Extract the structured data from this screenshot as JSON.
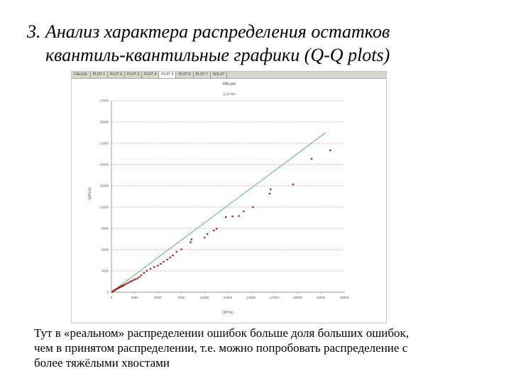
{
  "slide": {
    "title_line1": "3. Анализ характера распределения остатков",
    "title_line2": "квантиль-квантильные графики (Q-Q plots)",
    "body_line1": "Тут в «реальном» распределении ошибок больше доля больших ошибок,",
    "body_line2": "чем в принятом распределении, т.е. можно попробовать распределение с",
    "body_line3": "более тяжёлыми хвостами"
  },
  "screenshot": {
    "tabs": [
      "CALCUL",
      "PLOT 1",
      "PLOT 2",
      "PLOT 3",
      "PLOT 4",
      "PLOT 5",
      "PLOT 6",
      "PLOT 7",
      "SOLUT"
    ],
    "active_tab_index": 5,
    "colors": {
      "points": "#9b1c1c",
      "reference_line": "#3aa655",
      "gridlines": "#d84a4a",
      "tab_bar": "#d9d6cc"
    }
  },
  "chart_data": {
    "type": "scatter",
    "title": "RBI plot",
    "subtitle": "Q Q Plot",
    "xlabel": "Q(Pos)",
    "ylabel": "Q(Real)",
    "xlim": [
      0,
      25000
    ],
    "ylim": [
      0,
      27000
    ],
    "x_ticks": [
      "0",
      "2500",
      "5000",
      "7500",
      "10000",
      "12500",
      "15000",
      "17500",
      "20000",
      "22500",
      "25000"
    ],
    "y_ticks": [
      "0",
      "3000",
      "6000",
      "9000",
      "12000",
      "15000",
      "18000",
      "21000",
      "24000",
      "27000"
    ],
    "grid": "horizontal dashed",
    "reference_line": {
      "from": [
        0,
        0
      ],
      "to": [
        23000,
        22500
      ]
    },
    "series": [
      {
        "points": [
          [
            100,
            60
          ],
          [
            200,
            150
          ],
          [
            300,
            250
          ],
          [
            400,
            330
          ],
          [
            500,
            420
          ],
          [
            600,
            500
          ],
          [
            700,
            560
          ],
          [
            800,
            620
          ],
          [
            900,
            700
          ],
          [
            1000,
            770
          ],
          [
            1100,
            830
          ],
          [
            1200,
            900
          ],
          [
            1300,
            950
          ],
          [
            1400,
            1050
          ],
          [
            1600,
            1180
          ],
          [
            1800,
            1320
          ],
          [
            2000,
            1480
          ],
          [
            2200,
            1580
          ],
          [
            2400,
            1730
          ],
          [
            2600,
            1850
          ],
          [
            2800,
            1950
          ],
          [
            3000,
            2150
          ],
          [
            3200,
            2380
          ],
          [
            3500,
            2720
          ],
          [
            3800,
            3020
          ],
          [
            4200,
            3300
          ],
          [
            4600,
            3560
          ],
          [
            5000,
            3750
          ],
          [
            5300,
            4000
          ],
          [
            5600,
            4300
          ],
          [
            6000,
            4600
          ],
          [
            6300,
            4900
          ],
          [
            6600,
            5200
          ],
          [
            7000,
            5700
          ],
          [
            7500,
            6050
          ],
          [
            8500,
            7050
          ],
          [
            8600,
            7450
          ],
          [
            10000,
            7700
          ],
          [
            10300,
            8200
          ],
          [
            11000,
            8700
          ],
          [
            11300,
            8950
          ],
          [
            12300,
            10600
          ],
          [
            13000,
            10700
          ],
          [
            13700,
            10750
          ],
          [
            14200,
            11400
          ],
          [
            15200,
            12000
          ],
          [
            17000,
            13900
          ],
          [
            17100,
            14500
          ],
          [
            19500,
            15200
          ],
          [
            21500,
            18800
          ],
          [
            23500,
            20000
          ]
        ]
      }
    ]
  }
}
